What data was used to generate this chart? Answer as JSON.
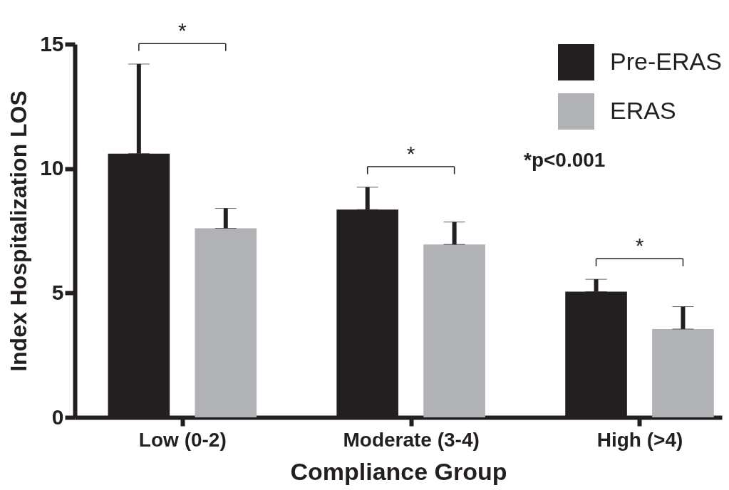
{
  "chart_data": {
    "type": "bar",
    "xlabel": "Compliance Group",
    "ylabel": "Index Hospitalization LOS",
    "categories": [
      "Low (0-2)",
      "Moderate (3-4)",
      "High (>4)"
    ],
    "series": [
      {
        "name": "Pre-ERAS",
        "color": "#231f20",
        "values": [
          10.6,
          8.35,
          5.05
        ],
        "errors": [
          [
            10.6,
            14.2
          ],
          [
            8.35,
            9.25
          ],
          [
            5.05,
            5.55
          ]
        ]
      },
      {
        "name": "ERAS",
        "color": "#b1b2b5",
        "values": [
          7.6,
          6.95,
          3.55
        ],
        "errors": [
          [
            7.6,
            8.4
          ],
          [
            6.95,
            7.85
          ],
          [
            3.55,
            4.45
          ]
        ]
      }
    ],
    "ylim": [
      0,
      15
    ],
    "yticks": [
      0,
      5,
      10,
      15
    ],
    "legend": "top right",
    "annotations": [
      "*",
      "*",
      "*",
      "*p<0.001"
    ]
  }
}
